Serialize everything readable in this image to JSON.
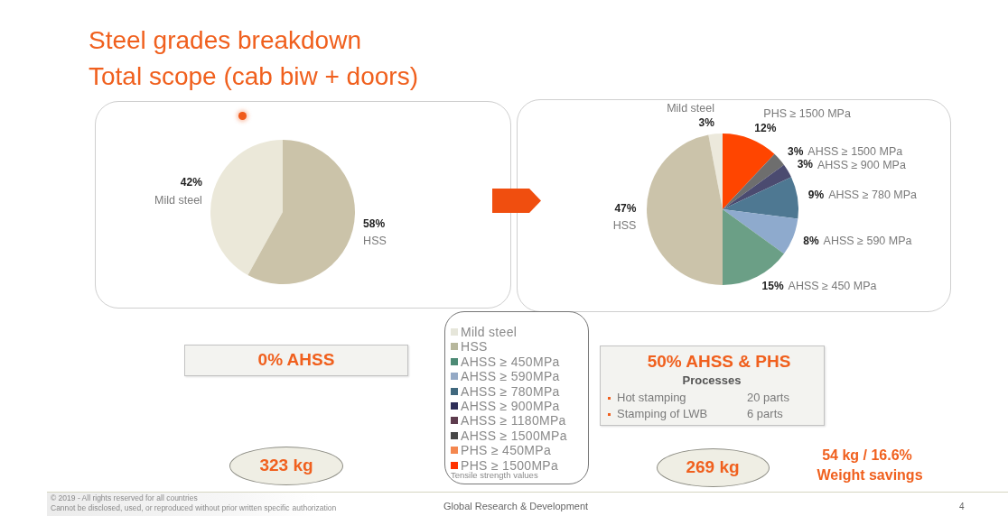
{
  "chart_data": [
    {
      "type": "pie",
      "title": "Steel grades breakdown",
      "subtitle": "Total scope (cab biw + doors)",
      "categories": [
        "Mild steel",
        "HSS"
      ],
      "values": [
        42,
        58
      ],
      "colors": [
        "#ebe8d9",
        "#cbc3a9"
      ],
      "value_labels": [
        "42%",
        "58%"
      ],
      "annotations": [
        "0% AHSS",
        "323 kg",
        "© 2019 - All rights reserved for all countries",
        "Cannot be disclosed, used, or reproduced without prior written specific",
        "authorization"
      ]
    },
    {
      "type": "pie",
      "categories": [
        "Mild steel",
        "PHS ≥ 1500 MPa",
        "AHSS ≥ 1500 MPa",
        "AHSS ≥ 900 MPa",
        "AHSS ≥ 780 MPa",
        "AHSS ≥ 590 MPa",
        "AHSS ≥ 450 MPa",
        "HSS"
      ],
      "values": [
        3,
        12,
        3,
        3,
        9,
        8,
        15,
        47
      ],
      "colors": [
        "#ece9dc",
        "#ff4500",
        "#6e6e6e",
        "#4b4b70",
        "#4e7892",
        "#8eaacd",
        "#6b9f86",
        "#cbc3aa"
      ],
      "value_labels": [
        "3%",
        "12%",
        "3%",
        "3%",
        "9%",
        "8%",
        "15%",
        "47%"
      ],
      "annotations": [
        "50% AHSS & PHS",
        "Processes",
        "Hot stamping",
        "20 parts",
        "Stamping of LWB",
        "6 parts",
        "269 kg",
        "54 kg / 16.6%",
        "Weight savings",
        "4"
      ]
    },
    {
      "type": "other",
      "categories": [
        "Mild steel",
        "HSS",
        "AHSS ≥ 450MPa",
        "AHSS ≥ 590MPa",
        "AHSS ≥ 780MPa",
        "AHSS ≥ 900MPa",
        "AHSS ≥ 1180MPa",
        "AHSS ≥ 1500MPa",
        "PHS ≥ 450MPa",
        "PHS ≥ 1500MPa"
      ],
      "colors": [
        "#e6e6da",
        "#b7b79c",
        "#4d8a75",
        "#94a9c5",
        "#40687e",
        "#2e2e58",
        "#5e3c4e",
        "#474747",
        "#f4874f",
        "#ff3300"
      ],
      "annotations": [
        "Tensile strength values",
        "Global Research & Development"
      ]
    }
  ]
}
